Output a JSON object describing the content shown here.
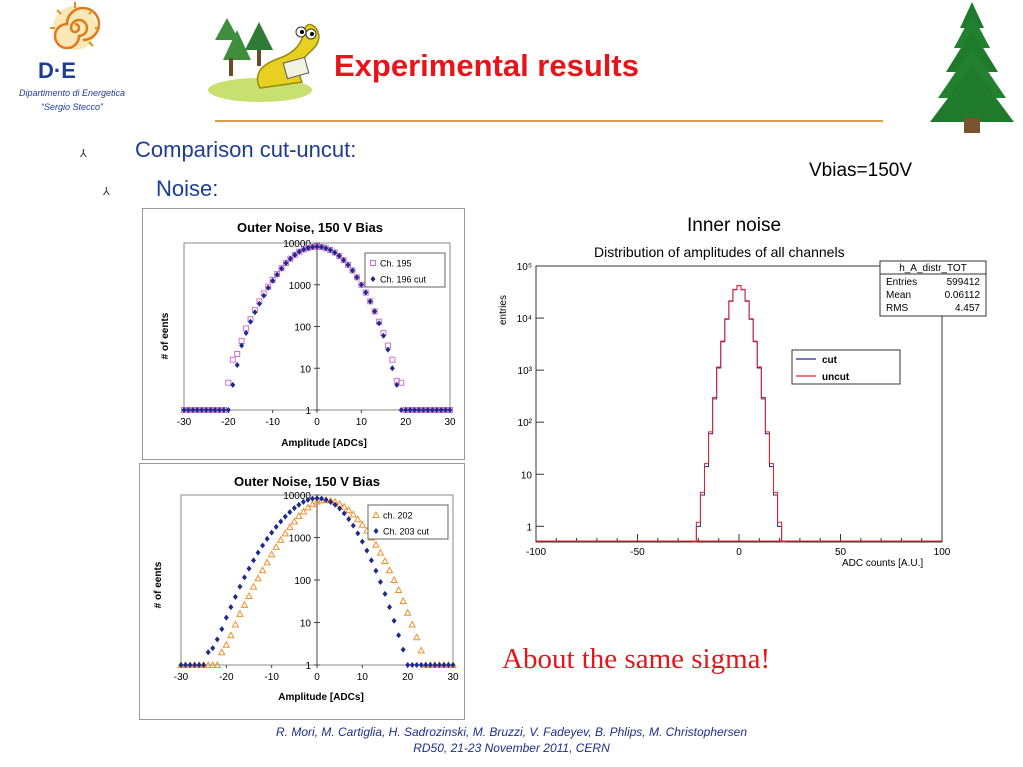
{
  "slide": {
    "title": "Experimental results",
    "bullet1": "Comparison cut-uncut:",
    "bullet2": "Noise:",
    "bullet_glyph": "⅄",
    "vbias": "Vbias=150V",
    "inner_noise_label": "Inner noise",
    "conclusion": "About the same sigma!",
    "footer_line1": "R. Mori, M. Cartiglia, H. Sadrozinski, M. Bruzzi, V. Fadeyev, B. Phlips, M. Christophersen",
    "footer_line2": "RD50, 21-23 November 2011, CERN",
    "colors": {
      "title": "#e8141a",
      "bullet": "#1d3c96",
      "footer": "#1d2f8a",
      "rule": "#d9a040"
    }
  },
  "logo": {
    "line1": "D·E",
    "line2": "Dipartimento di Energetica",
    "line3": "“Sergio Stecco”"
  },
  "icons": {
    "tree": "pine-tree-icon",
    "mascot": "cartoon-mascot-icon",
    "logo": "sun-spiral-logo-icon"
  },
  "chart_data": [
    {
      "type": "scatter",
      "title": "Outer Noise, 150 V Bias",
      "xlabel": "Amplitude   [ADCs]",
      "ylabel": "# of eents",
      "x_ticks": [
        "-30",
        "-20",
        "-10",
        "0",
        "10",
        "20",
        "30"
      ],
      "y_ticks": [
        "1",
        "10",
        "100",
        "1000",
        "10000"
      ],
      "xlim": [
        -30,
        30
      ],
      "ylim": [
        1,
        10000
      ],
      "yscale": "log",
      "legend_position": "top-right",
      "series": [
        {
          "name": "Ch. 195",
          "marker": "open-square",
          "color": "#d070d0",
          "x": [
            -30,
            -29,
            -28,
            -27,
            -26,
            -25,
            -24,
            -23,
            -22,
            -21,
            -20,
            -19,
            -18,
            -17,
            -16,
            -15,
            -14,
            -13,
            -12,
            -11,
            -10,
            -9,
            -8,
            -7,
            -6,
            -5,
            -4,
            -3,
            -2,
            -1,
            0,
            1,
            2,
            3,
            4,
            5,
            6,
            7,
            8,
            9,
            10,
            11,
            12,
            13,
            14,
            15,
            16,
            17,
            18,
            19,
            20,
            21,
            22,
            23,
            24,
            25,
            26,
            27,
            28,
            29,
            30
          ],
          "y": [
            1,
            1,
            1,
            1,
            1,
            1,
            1,
            1,
            1,
            1,
            4.5,
            16,
            22,
            45,
            90,
            150,
            250,
            400,
            620,
            900,
            1300,
            1800,
            2500,
            3300,
            4200,
            5200,
            6200,
            7000,
            7600,
            8000,
            8200,
            8000,
            7500,
            6800,
            5900,
            4900,
            3900,
            3000,
            2200,
            1500,
            1000,
            650,
            400,
            230,
            130,
            70,
            35,
            16,
            5,
            4.5,
            1,
            1,
            1,
            1,
            1,
            1,
            1,
            1,
            1,
            1,
            1
          ]
        },
        {
          "name": "Ch. 196 cut",
          "marker": "filled-diamond",
          "color": "#1f2a8c",
          "x": [
            -30,
            -29,
            -28,
            -27,
            -26,
            -25,
            -24,
            -23,
            -22,
            -21,
            -20,
            -19,
            -18,
            -17,
            -16,
            -15,
            -14,
            -13,
            -12,
            -11,
            -10,
            -9,
            -8,
            -7,
            -6,
            -5,
            -4,
            -3,
            -2,
            -1,
            0,
            1,
            2,
            3,
            4,
            5,
            6,
            7,
            8,
            9,
            10,
            11,
            12,
            13,
            14,
            15,
            16,
            17,
            18,
            19,
            20,
            21,
            22,
            23,
            24,
            25,
            26,
            27,
            28,
            29,
            30
          ],
          "y": [
            1,
            1,
            1,
            1,
            1,
            1,
            1,
            1,
            1,
            1,
            1,
            4,
            12,
            35,
            70,
            130,
            220,
            350,
            550,
            850,
            1250,
            1750,
            2450,
            3300,
            4200,
            5200,
            6200,
            7000,
            7600,
            8000,
            8200,
            8000,
            7500,
            6800,
            5900,
            4900,
            3900,
            3000,
            2200,
            1500,
            1000,
            650,
            400,
            230,
            120,
            60,
            28,
            10,
            4,
            1,
            1,
            1,
            1,
            1,
            1,
            1,
            1,
            1,
            1,
            1,
            1
          ]
        }
      ]
    },
    {
      "type": "scatter",
      "title": "Outer Noise, 150 V Bias",
      "xlabel": "Amplitude   [ADCs]",
      "ylabel": "# of eents",
      "x_ticks": [
        "-30",
        "-20",
        "-10",
        "0",
        "10",
        "20",
        "30"
      ],
      "y_ticks": [
        "1",
        "10",
        "100",
        "1000",
        "10000"
      ],
      "xlim": [
        -30,
        30
      ],
      "ylim": [
        1,
        10000
      ],
      "yscale": "log",
      "legend_position": "top-right",
      "series": [
        {
          "name": "ch. 202",
          "marker": "open-triangle",
          "color": "#f09030",
          "x": [
            -30,
            -29,
            -28,
            -27,
            -26,
            -25,
            -24,
            -23,
            -22,
            -21,
            -20,
            -19,
            -18,
            -17,
            -16,
            -15,
            -14,
            -13,
            -12,
            -11,
            -10,
            -9,
            -8,
            -7,
            -6,
            -5,
            -4,
            -3,
            -2,
            -1,
            0,
            1,
            2,
            3,
            4,
            5,
            6,
            7,
            8,
            9,
            10,
            11,
            12,
            13,
            14,
            15,
            16,
            17,
            18,
            19,
            20,
            21,
            22,
            23,
            24,
            25,
            26,
            27,
            28,
            29,
            30
          ],
          "y": [
            1,
            1,
            1,
            1,
            1,
            1,
            1,
            1,
            1,
            2,
            3,
            5,
            9,
            16,
            26,
            42,
            70,
            110,
            170,
            260,
            400,
            600,
            880,
            1250,
            1750,
            2400,
            3200,
            4100,
            5100,
            6100,
            7000,
            7500,
            7600,
            7400,
            6900,
            6200,
            5300,
            4400,
            3500,
            2700,
            2000,
            1450,
            1000,
            680,
            440,
            280,
            170,
            100,
            58,
            32,
            17,
            9,
            4.5,
            2.2,
            1,
            1,
            1,
            1,
            1,
            1,
            1
          ]
        },
        {
          "name": "Ch. 203 cut",
          "marker": "filled-diamond",
          "color": "#1f2a8c",
          "x": [
            -30,
            -29,
            -28,
            -27,
            -26,
            -25,
            -24,
            -23,
            -22,
            -21,
            -20,
            -19,
            -18,
            -17,
            -16,
            -15,
            -14,
            -13,
            -12,
            -11,
            -10,
            -9,
            -8,
            -7,
            -6,
            -5,
            -4,
            -3,
            -2,
            -1,
            0,
            1,
            2,
            3,
            4,
            5,
            6,
            7,
            8,
            9,
            10,
            11,
            12,
            13,
            14,
            15,
            16,
            17,
            18,
            19,
            20,
            21,
            22,
            23,
            24,
            25,
            26,
            27,
            28,
            29,
            30
          ],
          "y": [
            1,
            1,
            1,
            1,
            1,
            1,
            2,
            2.5,
            4,
            7,
            13,
            23,
            40,
            70,
            115,
            185,
            290,
            440,
            650,
            930,
            1300,
            1780,
            2380,
            3100,
            3950,
            4900,
            5900,
            6900,
            7700,
            8200,
            8400,
            8200,
            7700,
            6900,
            5900,
            4800,
            3700,
            2700,
            1900,
            1250,
            800,
            490,
            290,
            165,
            90,
            47,
            23,
            11,
            5,
            2.3,
            1,
            1,
            1,
            1,
            1,
            1,
            1,
            1,
            1,
            1,
            1
          ]
        }
      ]
    },
    {
      "type": "line",
      "title": "Distribution of amplitudes of all channels",
      "xlabel": "ADC counts   [A.U.]",
      "ylabel": "entries",
      "x_ticks": [
        "-100",
        "-50",
        "0",
        "50",
        "100"
      ],
      "y_ticks": [
        "1",
        "10",
        "10²",
        "10³",
        "10⁴",
        "10⁵"
      ],
      "xlim": [
        -100,
        100
      ],
      "ylim": [
        0.5,
        100000
      ],
      "yscale": "log",
      "legend_position": "right",
      "stats": {
        "name": "h_A_distr_TOT",
        "entries_label": "Entries",
        "entries": "599412",
        "mean_label": "Mean",
        "mean": "0.06112",
        "rms_label": "RMS",
        "rms": "4.457"
      },
      "series": [
        {
          "name": "cut",
          "color": "#1f2a8c",
          "x": [
            -22,
            -20,
            -18,
            -16,
            -14,
            -12,
            -10,
            -8,
            -6,
            -4,
            -2,
            0,
            2,
            4,
            6,
            8,
            10,
            12,
            14,
            16,
            18,
            20,
            22
          ],
          "y": [
            0.5,
            1,
            4,
            14,
            60,
            280,
            1100,
            3500,
            9500,
            21000,
            35000,
            42000,
            35000,
            21000,
            9500,
            3500,
            1100,
            280,
            60,
            14,
            4,
            1,
            0.5
          ]
        },
        {
          "name": "uncut",
          "color": "#e8202a",
          "x": [
            -22,
            -20,
            -18,
            -16,
            -14,
            -12,
            -10,
            -8,
            -6,
            -4,
            -2,
            0,
            2,
            4,
            6,
            8,
            10,
            12,
            14,
            16,
            18,
            20,
            22
          ],
          "y": [
            0.5,
            1.2,
            4.5,
            16,
            65,
            300,
            1150,
            3600,
            9700,
            21500,
            35500,
            42000,
            35500,
            21500,
            9700,
            3600,
            1150,
            300,
            65,
            16,
            4.5,
            1.2,
            0.5
          ]
        }
      ]
    }
  ]
}
